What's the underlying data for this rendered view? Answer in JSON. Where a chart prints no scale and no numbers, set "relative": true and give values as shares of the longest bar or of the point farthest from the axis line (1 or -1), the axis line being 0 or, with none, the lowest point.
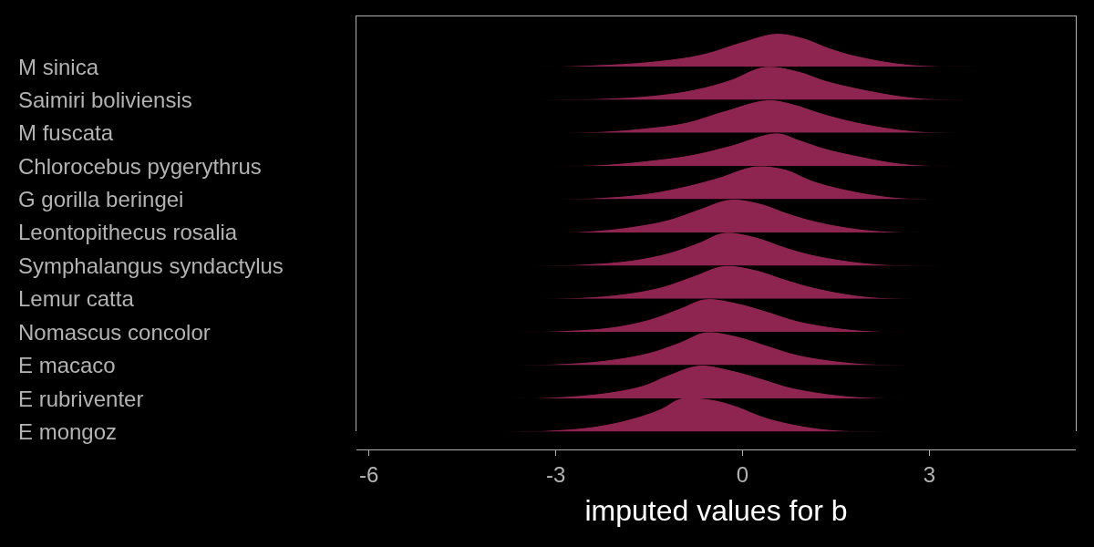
{
  "chart_data": [
    {
      "type": "area",
      "relative": true,
      "xlim": [
        -6.2,
        5.35
      ],
      "xticks": [
        -6,
        -3,
        0,
        3
      ],
      "tick_labels": false,
      "series": [
        {
          "name": "M sinica",
          "color": "#8e2450",
          "x": [
            -3.3,
            -2.5,
            -1.5,
            -0.66,
            0,
            0.54,
            1.0,
            1.34,
            1.8,
            2.65,
            3.8
          ],
          "values": [
            0,
            0.04,
            0.15,
            0.37,
            0.75,
            1.0,
            0.85,
            0.6,
            0.34,
            0.07,
            0
          ]
        }
      ]
    },
    {
      "type": "area",
      "relative": true,
      "xlim": [
        -6.2,
        5.35
      ],
      "xticks": [
        -6,
        -3,
        0,
        3
      ],
      "tick_labels": false,
      "series": [
        {
          "name": "Saimiri boliviensis",
          "color": "#8e2450",
          "x": [
            -3.4,
            -2.4,
            -1.5,
            -0.8,
            -0.2,
            0.35,
            0.9,
            1.3,
            1.9,
            2.8,
            4.0
          ],
          "values": [
            0,
            0.03,
            0.12,
            0.3,
            0.6,
            1.0,
            0.86,
            0.6,
            0.33,
            0.06,
            0
          ]
        }
      ]
    },
    {
      "type": "area",
      "relative": true,
      "xlim": [
        -6.2,
        5.35
      ],
      "xticks": [
        -6,
        -3,
        0,
        3
      ],
      "tick_labels": false,
      "series": [
        {
          "name": "M fuscata",
          "color": "#8e2450",
          "x": [
            -3.0,
            -2.3,
            -1.6,
            -0.9,
            -0.3,
            0.4,
            0.8,
            1.3,
            1.9,
            2.7,
            3.6
          ],
          "values": [
            0,
            0.04,
            0.14,
            0.32,
            0.66,
            1.0,
            0.88,
            0.58,
            0.3,
            0.07,
            0
          ]
        }
      ]
    },
    {
      "type": "area",
      "relative": true,
      "xlim": [
        -6.2,
        5.35
      ],
      "xticks": [
        -6,
        -3,
        0,
        3
      ],
      "tick_labels": false,
      "series": [
        {
          "name": "Chlorocebus pygerythrus",
          "color": "#8e2450",
          "x": [
            -3.1,
            -2.3,
            -1.6,
            -0.8,
            -0.2,
            0.55,
            0.9,
            1.3,
            1.8,
            2.6,
            3.5
          ],
          "values": [
            0,
            0.04,
            0.15,
            0.35,
            0.62,
            1.0,
            0.8,
            0.55,
            0.33,
            0.07,
            0
          ]
        }
      ]
    },
    {
      "type": "area",
      "relative": true,
      "xlim": [
        -6.2,
        5.35
      ],
      "xticks": [
        -6,
        -3,
        0,
        3
      ],
      "tick_labels": false,
      "series": [
        {
          "name": "G gorilla beringei",
          "color": "#8e2450",
          "x": [
            -3.2,
            -2.4,
            -1.6,
            -1.0,
            -0.4,
            0.2,
            0.7,
            1.1,
            1.6,
            2.4,
            3.3
          ],
          "values": [
            0,
            0.04,
            0.16,
            0.36,
            0.65,
            1.0,
            0.9,
            0.58,
            0.32,
            0.07,
            0
          ]
        }
      ]
    },
    {
      "type": "area",
      "relative": true,
      "xlim": [
        -6.2,
        5.35
      ],
      "xticks": [
        -6,
        -3,
        0,
        3
      ],
      "tick_labels": false,
      "series": [
        {
          "name": "Leontopithecus rosalia",
          "color": "#8e2450",
          "x": [
            -3.0,
            -2.4,
            -1.8,
            -1.2,
            -0.7,
            -0.2,
            0.3,
            0.7,
            1.2,
            2.0,
            2.9
          ],
          "values": [
            0,
            0.05,
            0.17,
            0.38,
            0.7,
            1.0,
            0.87,
            0.6,
            0.33,
            0.08,
            0
          ]
        }
      ]
    },
    {
      "type": "area",
      "relative": true,
      "xlim": [
        -6.2,
        5.35
      ],
      "xticks": [
        -6,
        -3,
        0,
        3
      ],
      "tick_labels": false,
      "series": [
        {
          "name": "Symphalangus syndactylus",
          "color": "#8e2450",
          "x": [
            -3.5,
            -2.6,
            -1.8,
            -1.2,
            -0.7,
            -0.3,
            0.2,
            0.7,
            1.2,
            2.1,
            3.3
          ],
          "values": [
            0,
            0.04,
            0.16,
            0.38,
            0.7,
            1.0,
            0.87,
            0.55,
            0.3,
            0.06,
            0
          ]
        }
      ]
    },
    {
      "type": "area",
      "relative": true,
      "xlim": [
        -6.2,
        5.35
      ],
      "xticks": [
        -6,
        -3,
        0,
        3
      ],
      "tick_labels": false,
      "series": [
        {
          "name": "Lemur catta",
          "color": "#8e2450",
          "x": [
            -3.3,
            -2.6,
            -1.9,
            -1.3,
            -0.8,
            -0.3,
            0.2,
            0.7,
            1.2,
            2.0,
            3.0
          ],
          "values": [
            0,
            0.04,
            0.15,
            0.36,
            0.68,
            1.0,
            0.88,
            0.58,
            0.32,
            0.07,
            0
          ]
        }
      ]
    },
    {
      "type": "area",
      "relative": true,
      "xlim": [
        -6.2,
        5.35
      ],
      "xticks": [
        -6,
        -3,
        0,
        3
      ],
      "tick_labels": false,
      "series": [
        {
          "name": "Nomascus concolor",
          "color": "#8e2450",
          "x": [
            -3.8,
            -2.9,
            -2.1,
            -1.5,
            -1.0,
            -0.6,
            -0.1,
            0.4,
            0.9,
            1.8,
            2.9
          ],
          "values": [
            0,
            0.04,
            0.15,
            0.38,
            0.72,
            1.0,
            0.88,
            0.62,
            0.33,
            0.07,
            0
          ]
        }
      ]
    },
    {
      "type": "area",
      "relative": true,
      "xlim": [
        -6.2,
        5.35
      ],
      "xticks": [
        -6,
        -3,
        0,
        3
      ],
      "tick_labels": false,
      "series": [
        {
          "name": "E macaco",
          "color": "#8e2450",
          "x": [
            -3.9,
            -3.0,
            -2.2,
            -1.5,
            -1.0,
            -0.6,
            -0.1,
            0.4,
            0.9,
            1.8,
            2.9
          ],
          "values": [
            0,
            0.04,
            0.15,
            0.38,
            0.7,
            1.0,
            0.88,
            0.59,
            0.31,
            0.07,
            0
          ]
        }
      ]
    },
    {
      "type": "area",
      "relative": true,
      "xlim": [
        -6.2,
        5.35
      ],
      "xticks": [
        -6,
        -3,
        0,
        3
      ],
      "tick_labels": false,
      "series": [
        {
          "name": "E rubriventer",
          "color": "#8e2450",
          "x": [
            -3.8,
            -3.0,
            -2.2,
            -1.6,
            -1.2,
            -0.7,
            -0.2,
            0.3,
            0.8,
            1.7,
            2.8
          ],
          "values": [
            0,
            0.04,
            0.17,
            0.39,
            0.7,
            1.0,
            0.86,
            0.6,
            0.32,
            0.07,
            0
          ]
        }
      ]
    },
    {
      "type": "area",
      "relative": true,
      "xlabel": "imputed values for b",
      "xlim": [
        -6.2,
        5.35
      ],
      "xticks": [
        -6,
        -3,
        0,
        3
      ],
      "tick_labels": "x",
      "series": [
        {
          "name": "E mongoz",
          "color": "#8e2450",
          "x": [
            -3.9,
            -3.1,
            -2.4,
            -1.8,
            -1.3,
            -1.0,
            -0.5,
            -0.1,
            0.4,
            1.3,
            2.6
          ],
          "values": [
            0,
            0.04,
            0.15,
            0.38,
            0.7,
            1.0,
            0.97,
            0.77,
            0.41,
            0.08,
            0
          ]
        }
      ]
    }
  ]
}
